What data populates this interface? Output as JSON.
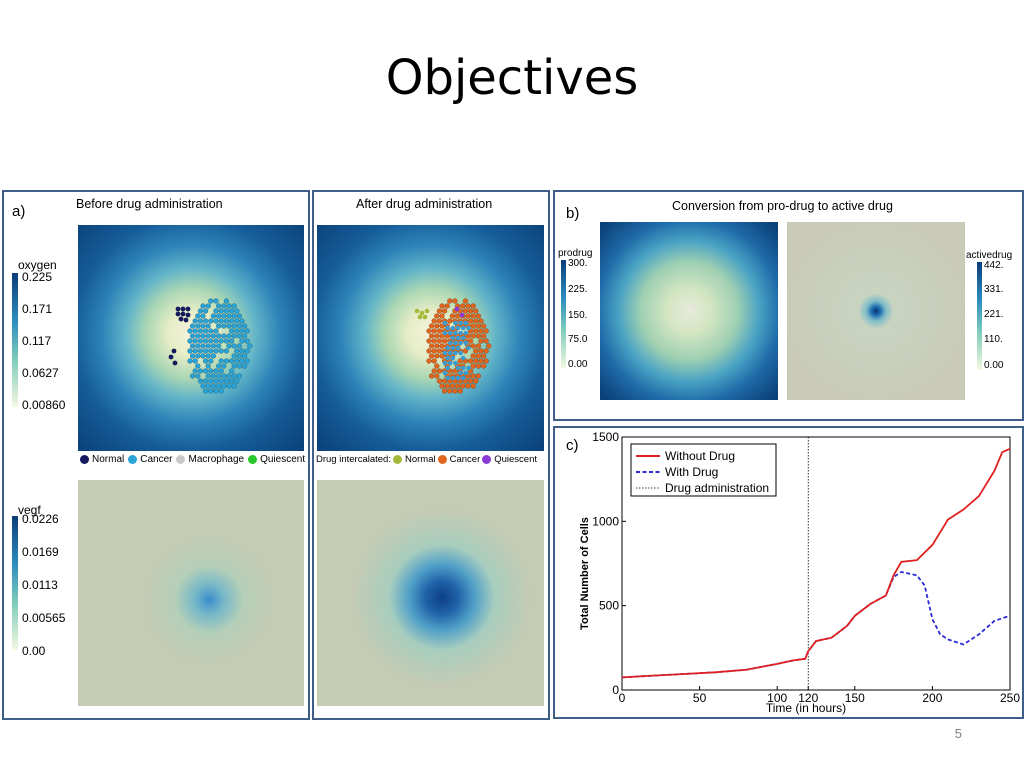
{
  "slide": {
    "title": "Objectives",
    "page_number": "5"
  },
  "panel_a": {
    "label": "a)",
    "before_title": "Before drug administration",
    "after_title": "After drug administration",
    "oxygen": {
      "name": "oxygen",
      "ticks": [
        "0.225",
        "0.171",
        "0.117",
        "0.0627",
        "0.00860"
      ]
    },
    "vegf": {
      "name": "vegf",
      "ticks": [
        "0.0226",
        "0.0169",
        "0.0113",
        "0.00565",
        "0.00"
      ]
    },
    "legend_before": [
      {
        "label": "Normal",
        "color": "#141a5c"
      },
      {
        "label": "Cancer",
        "color": "#2aa3d6"
      },
      {
        "label": "Macrophage",
        "color": "#c8c8c8"
      },
      {
        "label": "Quiescent",
        "color": "#28c828"
      }
    ],
    "legend_after_prefix": "Drug intercalated:",
    "legend_after": [
      {
        "label": "Normal",
        "color": "#a6b83a"
      },
      {
        "label": "Cancer",
        "color": "#e0661e"
      },
      {
        "label": "Quiescent",
        "color": "#8a3ad6"
      }
    ]
  },
  "panel_b": {
    "label": "b)",
    "title": "Conversion from pro-drug to active drug",
    "prodrug": {
      "name": "prodrug",
      "ticks": [
        "300.",
        "225.",
        "150.",
        "75.0",
        "0.00"
      ]
    },
    "activedrug": {
      "name": "activedrug",
      "ticks": [
        "442.",
        "331.",
        "221.",
        "110.",
        "0.00"
      ]
    }
  },
  "panel_c": {
    "label": "c)"
  },
  "chart_data": {
    "type": "line",
    "title": "",
    "xlabel": "Time (in hours)",
    "ylabel": "Total Number of Cells",
    "xlim": [
      0,
      250
    ],
    "ylim": [
      0,
      1500
    ],
    "xticks": [
      "0",
      "50",
      "100",
      "120",
      "150",
      "200",
      "250"
    ],
    "yticks": [
      "0",
      "500",
      "1000",
      "1500"
    ],
    "legend_position": "top-left",
    "drug_administration_x": 120,
    "drug_administration_label": "Drug administration",
    "series": [
      {
        "name": "Without Drug",
        "color": "#e02020",
        "style": "solid",
        "x": [
          0,
          20,
          40,
          60,
          80,
          100,
          110,
          118,
          120,
          125,
          135,
          145,
          150,
          160,
          170,
          175,
          180,
          190,
          200,
          210,
          220,
          230,
          240,
          245,
          250
        ],
        "y": [
          75,
          85,
          95,
          105,
          120,
          155,
          175,
          185,
          230,
          290,
          310,
          380,
          440,
          510,
          560,
          680,
          760,
          770,
          860,
          1010,
          1070,
          1150,
          1300,
          1410,
          1430
        ]
      },
      {
        "name": "With Drug",
        "color": "#2a2ad6",
        "style": "dashed",
        "x": [
          0,
          20,
          40,
          60,
          80,
          100,
          110,
          118,
          120,
          125,
          135,
          145,
          150,
          160,
          170,
          175,
          180,
          190,
          195,
          200,
          205,
          210,
          220,
          230,
          240,
          250
        ],
        "y": [
          75,
          85,
          95,
          105,
          120,
          155,
          175,
          185,
          230,
          290,
          310,
          380,
          440,
          510,
          560,
          670,
          700,
          680,
          620,
          420,
          330,
          300,
          270,
          330,
          410,
          440
        ]
      }
    ]
  }
}
